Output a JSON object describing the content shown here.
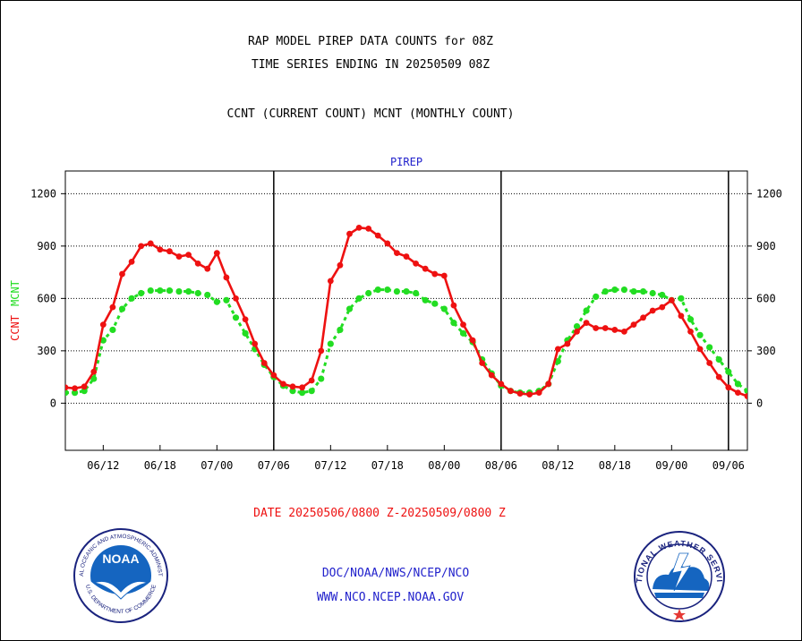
{
  "header": {
    "title_line1": "RAP MODEL PIREP DATA COUNTS for 08Z",
    "title_line2": "TIME SERIES ENDING IN 20250509 08Z",
    "subtitle": "CCNT (CURRENT COUNT) MCNT (MONTHLY COUNT)"
  },
  "footer": {
    "date_range": "DATE 20250506/0800 Z-20250509/0800 Z",
    "org_path": "DOC/NOAA/NWS/NCEP/NCO",
    "website": "WWW.NCO.NCEP.NOAA.GOV"
  },
  "logos": {
    "noaa_text": "NOAA",
    "noaa_ring_top": "NATIONAL OCEANIC AND ATMOSPHERIC ADMINISTRATION",
    "noaa_ring_bottom": "U.S. DEPARTMENT OF COMMERCE",
    "nws_ring": "NATIONAL WEATHER SERVICE"
  },
  "colors": {
    "ccnt": "#ee1111",
    "mcnt": "#22dd22",
    "title_blue": "#2222cc",
    "date_red": "#ee1111"
  },
  "chart_data": {
    "type": "line",
    "title": "PIREP",
    "ylabel_ccnt": "CCNT",
    "ylabel_mcnt": "MCNT",
    "ylim": [
      -270,
      1330
    ],
    "xlim": [
      0,
      72
    ],
    "y_ticks": [
      0,
      300,
      600,
      900,
      1200
    ],
    "x_tick_labels": [
      {
        "x": 4,
        "label": "06/12"
      },
      {
        "x": 10,
        "label": "06/18"
      },
      {
        "x": 16,
        "label": "07/00"
      },
      {
        "x": 22,
        "label": "07/06"
      },
      {
        "x": 28,
        "label": "07/12"
      },
      {
        "x": 34,
        "label": "07/18"
      },
      {
        "x": 40,
        "label": "08/00"
      },
      {
        "x": 46,
        "label": "08/06"
      },
      {
        "x": 52,
        "label": "08/12"
      },
      {
        "x": 58,
        "label": "08/18"
      },
      {
        "x": 64,
        "label": "09/00"
      },
      {
        "x": 70,
        "label": "09/06"
      }
    ],
    "day_boundaries": [
      22,
      46,
      70
    ],
    "grid": true,
    "series": [
      {
        "name": "CCNT",
        "values": [
          90,
          85,
          95,
          180,
          450,
          550,
          740,
          810,
          900,
          915,
          880,
          870,
          840,
          850,
          800,
          770,
          860,
          720,
          600,
          480,
          340,
          230,
          160,
          110,
          95,
          90,
          130,
          300,
          700,
          790,
          970,
          1005,
          1000,
          960,
          915,
          860,
          840,
          800,
          770,
          740,
          730,
          560,
          450,
          360,
          230,
          160,
          110,
          70,
          55,
          50,
          60,
          110,
          310,
          340,
          410,
          460,
          430,
          430,
          420,
          410,
          450,
          490,
          530,
          550,
          590,
          500,
          410,
          310,
          230,
          150,
          90,
          60,
          40
        ]
      },
      {
        "name": "MCNT",
        "values": [
          60,
          60,
          70,
          140,
          360,
          420,
          540,
          600,
          630,
          645,
          645,
          645,
          640,
          640,
          630,
          620,
          580,
          590,
          490,
          400,
          310,
          220,
          150,
          100,
          70,
          60,
          70,
          140,
          340,
          420,
          540,
          600,
          630,
          650,
          650,
          640,
          640,
          630,
          590,
          570,
          540,
          460,
          400,
          350,
          250,
          170,
          100,
          70,
          60,
          60,
          70,
          110,
          240,
          360,
          440,
          530,
          610,
          640,
          650,
          650,
          640,
          640,
          630,
          620,
          590,
          600,
          480,
          390,
          320,
          250,
          180,
          110,
          70
        ]
      }
    ]
  }
}
